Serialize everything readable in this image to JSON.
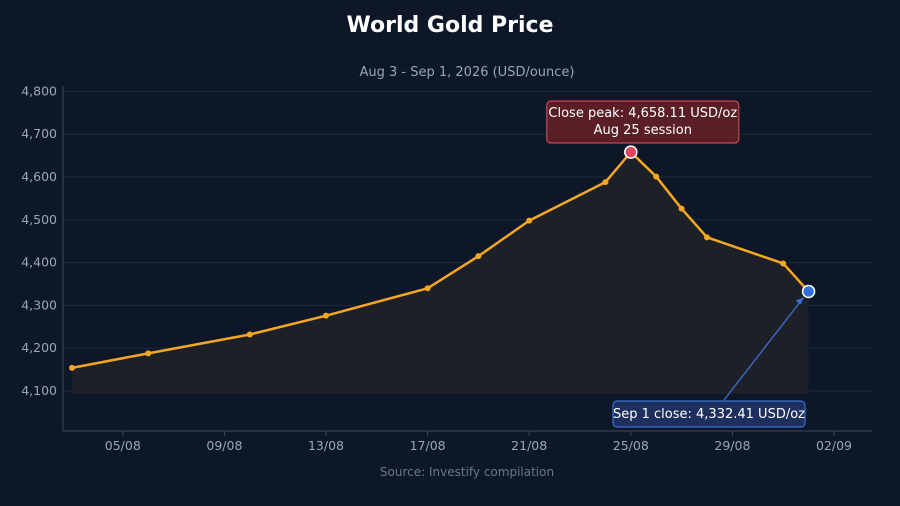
{
  "chart_data": {
    "type": "area",
    "title": "World Gold Price",
    "subtitle": "Aug 3 - Sep 1, 2026 (USD/ounce)",
    "source": "Source: Investify compilation",
    "xlabel": "",
    "ylabel": "",
    "x_ticks": [
      "05/08",
      "09/08",
      "13/08",
      "17/08",
      "21/08",
      "25/08",
      "29/08",
      "02/09"
    ],
    "y_ticks": [
      "4,100",
      "4,200",
      "4,300",
      "4,400",
      "4,500",
      "4,600",
      "4,700",
      "4,800"
    ],
    "ylim": [
      4000,
      4825
    ],
    "xlim": [
      "2026-08-02",
      "2026-09-02"
    ],
    "grid": true,
    "legend": "none",
    "series": [
      {
        "points": [
          {
            "x": "2026-08-03",
            "y": 4154
          },
          {
            "x": "2026-08-06",
            "y": 4188
          },
          {
            "x": "2026-08-10",
            "y": 4232
          },
          {
            "x": "2026-08-13",
            "y": 4276
          },
          {
            "x": "2026-08-17",
            "y": 4340
          },
          {
            "x": "2026-08-19",
            "y": 4415
          },
          {
            "x": "2026-08-21",
            "y": 4498
          },
          {
            "x": "2026-08-24",
            "y": 4588
          },
          {
            "x": "2026-08-25",
            "y": 4658.11
          },
          {
            "x": "2026-08-26",
            "y": 4601
          },
          {
            "x": "2026-08-27",
            "y": 4526
          },
          {
            "x": "2026-08-28",
            "y": 4459
          },
          {
            "x": "2026-08-31",
            "y": 4398
          },
          {
            "x": "2026-09-01",
            "y": 4332.41
          }
        ]
      }
    ],
    "annotations": [
      {
        "x": "2026-08-25",
        "y": 4658.11,
        "lines": [
          "Close peak: 4,658.11 USD/oz",
          "Aug 25 session"
        ]
      },
      {
        "x": "2026-09-01",
        "y": 4332.41,
        "lines": [
          "Sep 1 close: 4,332.41 USD/oz"
        ]
      }
    ],
    "colors": {
      "background": "#0d1727",
      "line": "#f5a623",
      "area": "#1f2126",
      "grid": "#1c2a40",
      "peak_marker": "#e0455a",
      "close_marker": "#2f6fd8",
      "peak_box": "#5a1f26",
      "peak_box_border": "#c94456",
      "close_box": "#1d2f5c",
      "close_box_border": "#3c6fd6"
    }
  }
}
